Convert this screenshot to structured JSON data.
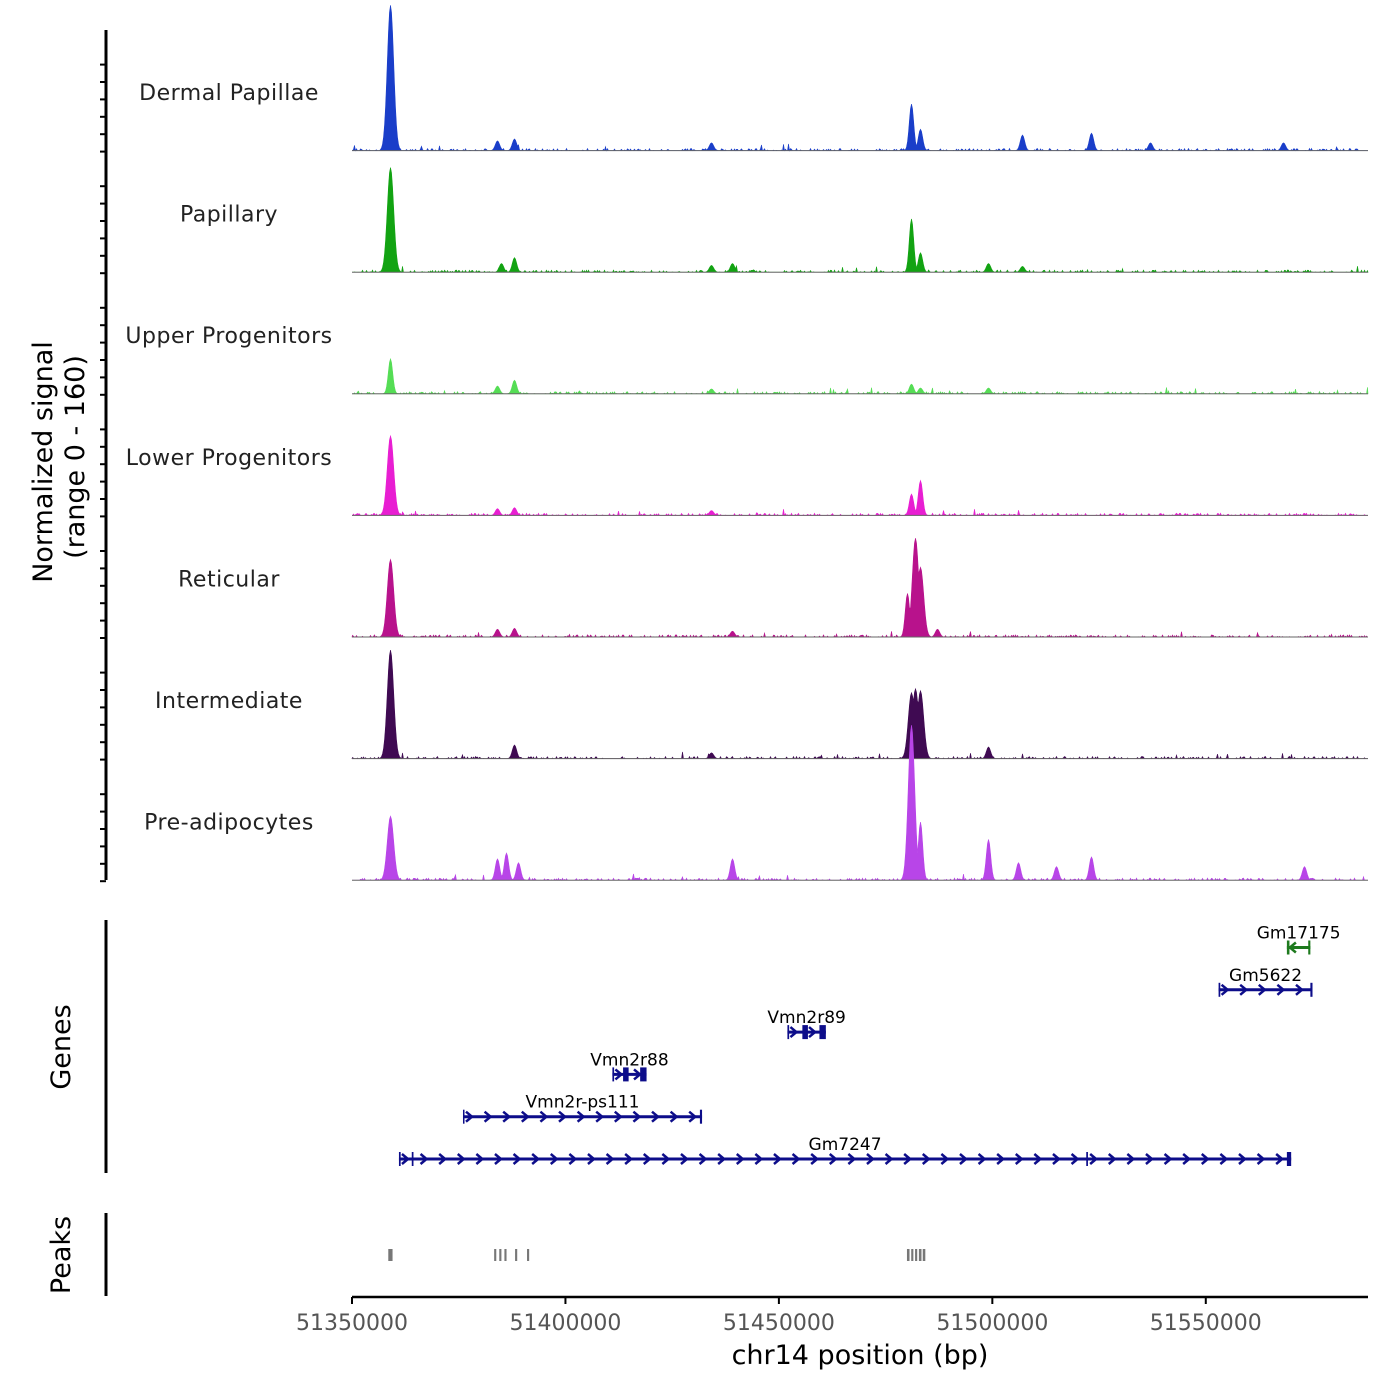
{
  "chart_data": {
    "type": "area",
    "title": "",
    "xlabel": "chr14 position (bp)",
    "ylabel_panels": {
      "signal": "Normalized signal",
      "signal_range": "(range 0 - 160)",
      "genes": "Genes",
      "peaks": "Peaks"
    },
    "xlim": [
      51350000,
      51588000
    ],
    "ylim": [
      0,
      160
    ],
    "xticks": [
      51350000,
      51400000,
      51450000,
      51500000,
      51550000
    ],
    "xtick_labels": [
      "51350000",
      "51400000",
      "51450000",
      "51500000",
      "51550000"
    ],
    "tracks": [
      {
        "name": "Dermal Papillae",
        "color": "#1a3ec9",
        "peaks": [
          [
            51359000,
            150
          ],
          [
            51384000,
            10
          ],
          [
            51388000,
            12
          ],
          [
            51434000,
            8
          ],
          [
            51481000,
            48
          ],
          [
            51483000,
            22
          ],
          [
            51507000,
            16
          ],
          [
            51523000,
            18
          ],
          [
            51537000,
            8
          ],
          [
            51568000,
            8
          ]
        ]
      },
      {
        "name": "Papillary",
        "color": "#12a312",
        "peaks": [
          [
            51359000,
            108
          ],
          [
            51385000,
            9
          ],
          [
            51388000,
            15
          ],
          [
            51434000,
            7
          ],
          [
            51439000,
            9
          ],
          [
            51481000,
            55
          ],
          [
            51483000,
            20
          ],
          [
            51499000,
            9
          ],
          [
            51507000,
            6
          ]
        ]
      },
      {
        "name": "Upper Progenitors",
        "color": "#55dd55",
        "peaks": [
          [
            51359000,
            36
          ],
          [
            51384000,
            8
          ],
          [
            51388000,
            14
          ],
          [
            51434000,
            5
          ],
          [
            51481000,
            10
          ],
          [
            51483000,
            6
          ],
          [
            51499000,
            6
          ]
        ]
      },
      {
        "name": "Lower Progenitors",
        "color": "#e81ed2",
        "peaks": [
          [
            51359000,
            82
          ],
          [
            51384000,
            7
          ],
          [
            51388000,
            8
          ],
          [
            51434000,
            5
          ],
          [
            51481000,
            22
          ],
          [
            51483000,
            36
          ]
        ]
      },
      {
        "name": "Reticular",
        "color": "#b8128c",
        "peaks": [
          [
            51359000,
            80
          ],
          [
            51384000,
            8
          ],
          [
            51388000,
            9
          ],
          [
            51439000,
            6
          ],
          [
            51480000,
            45
          ],
          [
            51482000,
            102
          ],
          [
            51483000,
            72
          ],
          [
            51487000,
            8
          ]
        ]
      },
      {
        "name": "Intermediate",
        "color": "#3f0a52",
        "peaks": [
          [
            51359000,
            112
          ],
          [
            51388000,
            14
          ],
          [
            51434000,
            6
          ],
          [
            51481000,
            68
          ],
          [
            51482000,
            72
          ],
          [
            51483000,
            70
          ],
          [
            51499000,
            12
          ]
        ]
      },
      {
        "name": "Pre-adipocytes",
        "color": "#b845e8",
        "peaks": [
          [
            51359000,
            66
          ],
          [
            51384000,
            22
          ],
          [
            51386000,
            28
          ],
          [
            51389000,
            18
          ],
          [
            51439000,
            22
          ],
          [
            51481000,
            170
          ],
          [
            51483000,
            60
          ],
          [
            51499000,
            42
          ],
          [
            51506000,
            18
          ],
          [
            51515000,
            14
          ],
          [
            51523000,
            24
          ],
          [
            51573000,
            14
          ]
        ]
      }
    ],
    "genes": [
      {
        "name": "Gm17175",
        "start": 51569000,
        "end": 51574500,
        "strand": "-",
        "color": "#1e7a1e",
        "row": 5,
        "exons": [
          [
            51569000,
            51569600
          ],
          [
            51574000,
            51574500
          ]
        ]
      },
      {
        "name": "Gm5622",
        "start": 51553000,
        "end": 51575000,
        "strand": "+",
        "color": "#0d0d8a",
        "row": 4,
        "exons": [
          [
            51553000,
            51553400
          ],
          [
            51574500,
            51575000
          ]
        ]
      },
      {
        "name": "Vmn2r89",
        "start": 51452000,
        "end": 51461000,
        "strand": "+",
        "color": "#0d0d8a",
        "row": 3,
        "exons": [
          [
            51452000,
            51452400
          ],
          [
            51455500,
            51456800
          ],
          [
            51459500,
            51461000
          ]
        ]
      },
      {
        "name": "Vmn2r88",
        "start": 51411000,
        "end": 51419000,
        "strand": "+",
        "color": "#0d0d8a",
        "row": 2,
        "exons": [
          [
            51411000,
            51411400
          ],
          [
            51413500,
            51414800
          ],
          [
            51417500,
            51419000
          ]
        ]
      },
      {
        "name": "Vmn2r-ps111",
        "start": 51376000,
        "end": 51432000,
        "strand": "+",
        "color": "#0d0d8a",
        "row": 1,
        "exons": [
          [
            51376000,
            51376300
          ],
          [
            51431500,
            51432000
          ]
        ]
      },
      {
        "name": "Gm7247",
        "start": 51361000,
        "end": 51570000,
        "strand": "+",
        "color": "#0d0d8a",
        "row": 0,
        "exons": [
          [
            51361000,
            51361400
          ],
          [
            51364000,
            51364400
          ],
          [
            51522000,
            51522400
          ],
          [
            51569000,
            51570000
          ]
        ]
      }
    ],
    "peaks_track": [
      [
        51358500,
        51359500
      ],
      [
        51383300,
        51383800
      ],
      [
        51384500,
        51385000
      ],
      [
        51385700,
        51386200
      ],
      [
        51388200,
        51388700
      ],
      [
        51391000,
        51391500
      ],
      [
        51480000,
        51480600
      ],
      [
        51481000,
        51481500
      ],
      [
        51481900,
        51482400
      ],
      [
        51482800,
        51483400
      ],
      [
        51483700,
        51484300
      ]
    ],
    "background_color": "#777777"
  }
}
